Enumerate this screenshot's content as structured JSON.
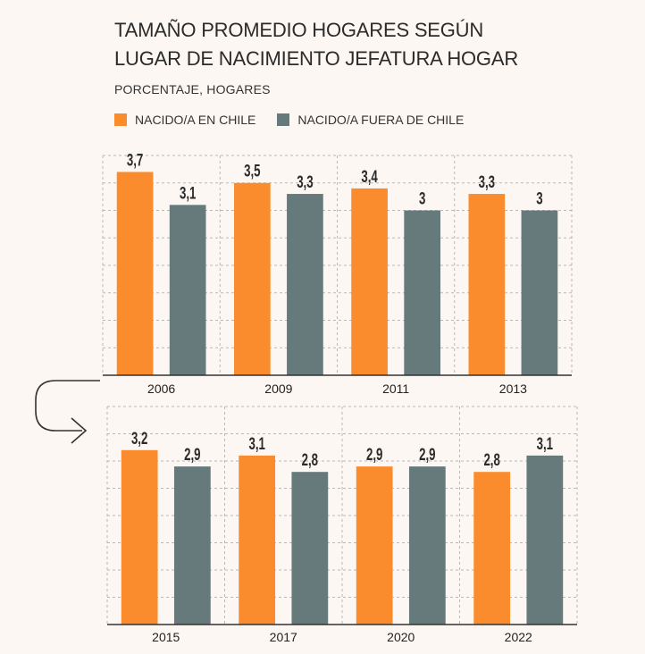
{
  "title_line1": "TAMAÑO PROMEDIO HOGARES SEGÚN",
  "title_line2": "LUGAR DE NACIMIENTO JEFATURA HOGAR",
  "subtitle": "PORCENTAJE, HOGARES",
  "colors": {
    "chile": "#fb8c2e",
    "fuera": "#667a7b",
    "grid": "#b8b8b8",
    "axis": "#333333"
  },
  "chart_data": [
    {
      "type": "bar",
      "categories": [
        "2006",
        "2009",
        "2011",
        "2013"
      ],
      "series": [
        {
          "name": "NACIDO/A EN CHILE",
          "values": [
            3.7,
            3.5,
            3.4,
            3.3
          ]
        },
        {
          "name": "NACIDO/A FUERA DE CHILE",
          "values": [
            3.1,
            3.3,
            3,
            3
          ]
        }
      ],
      "data_labels": [
        [
          "3,7",
          "3,5",
          "3,4",
          "3,3"
        ],
        [
          "3,1",
          "3,3",
          "3",
          "3"
        ]
      ],
      "ylim": [
        0,
        4
      ],
      "grid": true,
      "legend": "top"
    },
    {
      "type": "bar",
      "categories": [
        "2015",
        "2017",
        "2020",
        "2022"
      ],
      "series": [
        {
          "name": "NACIDO/A EN CHILE",
          "values": [
            3.2,
            3.1,
            2.9,
            2.8
          ]
        },
        {
          "name": "NACIDO/A FUERA DE CHILE",
          "values": [
            2.9,
            2.8,
            2.9,
            3.1
          ]
        }
      ],
      "data_labels": [
        [
          "3,2",
          "3,1",
          "2,9",
          "2,8"
        ],
        [
          "2,9",
          "2,8",
          "2,9",
          "3,1"
        ]
      ],
      "ylim": [
        0,
        4
      ],
      "grid": true,
      "legend": "top"
    }
  ]
}
